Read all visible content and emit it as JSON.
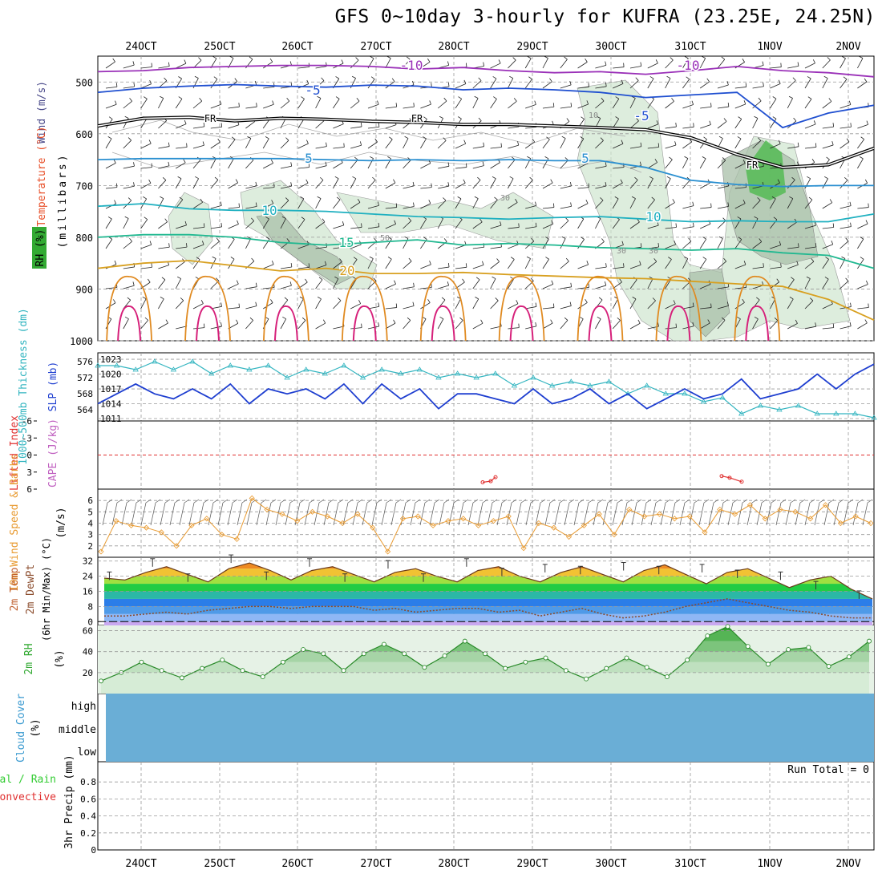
{
  "header": {
    "title": "GFS 0~10day 3-hourly for KUFRA (23.25E, 24.25N)"
  },
  "date_labels": [
    "24OCT",
    "25OCT",
    "26OCT",
    "27OCT",
    "28OCT",
    "29OCT",
    "30OCT",
    "31OCT",
    "1NOV",
    "2NOV"
  ],
  "colors": {
    "temp_label": "#e8502a",
    "wind_label": "#4a4a8a",
    "rh_green": "#33aa33",
    "slp": "#1f3fd0",
    "thickness": "#33b5c0",
    "li": "#e03030",
    "cape": "#c060c0",
    "wind10": "#e89a30",
    "rh2m": "#33aa33",
    "cloud": "#6aaed6",
    "precip_total": "#33cc33",
    "precip_conv": "#e03030"
  },
  "chart_data": [
    {
      "type": "line",
      "panel": "upper-air",
      "ylabels": [
        "Wind (m/s)",
        "Temperature (°C)",
        "RH (%)"
      ],
      "ylabel_side": "(millibars)",
      "y_ticks": [
        500,
        600,
        700,
        800,
        900,
        1000
      ],
      "ylim": [
        1000,
        450
      ],
      "isotherm_labels": [
        "-10",
        "-10",
        "-5",
        "-5",
        "FR",
        "FR",
        "FR",
        "5",
        "5",
        "10",
        "10",
        "15",
        "20"
      ],
      "rh_labels": [
        "30",
        "50",
        "30",
        "10",
        "30"
      ],
      "series": [
        {
          "name": "-10",
          "values": [
            480,
            478,
            472,
            470,
            468,
            468,
            470,
            475,
            472,
            478,
            482,
            480,
            485,
            478,
            470,
            478,
            482,
            490
          ]
        },
        {
          "name": "-5",
          "values": [
            520,
            512,
            508,
            505,
            508,
            510,
            506,
            508,
            515,
            512,
            515,
            520,
            530,
            525,
            520,
            588,
            560,
            545
          ]
        },
        {
          "name": "FR",
          "values": [
            585,
            570,
            568,
            575,
            570,
            572,
            576,
            578,
            582,
            582,
            585,
            588,
            592,
            608,
            640,
            665,
            660,
            628
          ]
        },
        {
          "name": "5",
          "values": [
            650,
            648,
            648,
            648,
            648,
            650,
            652,
            650,
            652,
            650,
            652,
            652,
            665,
            690,
            698,
            702,
            700,
            700
          ]
        },
        {
          "name": "10",
          "values": [
            740,
            735,
            745,
            748,
            748,
            750,
            755,
            760,
            762,
            765,
            762,
            760,
            765,
            770,
            768,
            770,
            770,
            755
          ]
        },
        {
          "name": "15",
          "values": [
            800,
            795,
            795,
            800,
            810,
            815,
            810,
            805,
            815,
            812,
            815,
            820,
            822,
            825,
            822,
            830,
            835,
            860
          ]
        },
        {
          "name": "20",
          "values": [
            860,
            850,
            845,
            855,
            865,
            860,
            870,
            870,
            868,
            872,
            875,
            878,
            880,
            885,
            890,
            895,
            920,
            960
          ]
        }
      ]
    },
    {
      "type": "line",
      "panel": "slp-thickness",
      "ylabels": [
        "1000~500mb Thickness (dm)",
        "SLP (mb)"
      ],
      "left_ticks": [
        "576",
        "572",
        "568",
        "564"
      ],
      "right_ticks": [
        "1023",
        "1020",
        "1017",
        "1014",
        "1011"
      ],
      "series": [
        {
          "name": "SLP (mb)",
          "values": [
            1014,
            1016,
            1018,
            1016,
            1015,
            1017,
            1015,
            1018,
            1014,
            1017,
            1016,
            1017,
            1015,
            1018,
            1014,
            1018,
            1015,
            1017,
            1013,
            1016,
            1016,
            1015,
            1014,
            1017,
            1014,
            1015,
            1017,
            1014,
            1016,
            1013,
            1015,
            1017,
            1015,
            1016,
            1019,
            1015,
            1016,
            1017,
            1020,
            1017,
            1020,
            1022
          ]
        },
        {
          "name": "1000~500mb Thickness (dm)",
          "values": [
            575,
            575,
            574,
            576,
            574,
            576,
            573,
            575,
            574,
            575,
            572,
            574,
            573,
            575,
            572,
            574,
            573,
            574,
            572,
            573,
            572,
            573,
            570,
            572,
            570,
            571,
            570,
            571,
            568,
            570,
            568,
            568,
            566,
            567,
            563,
            565,
            564,
            565,
            563,
            563,
            563,
            562
          ]
        }
      ]
    },
    {
      "type": "line",
      "panel": "lifted-index-cape",
      "ylabels": [
        "Lifted Index",
        "CAPE (J/kg)"
      ],
      "y_ticks": [
        "-6",
        "-3",
        "0",
        "3",
        "6"
      ],
      "ylim": [
        -6,
        6
      ],
      "series": [
        {
          "name": "Lifted Index",
          "values": [
            4.8,
            4.6,
            3.9,
            3.7,
            4.0,
            4.7
          ]
        }
      ]
    },
    {
      "type": "line",
      "panel": "wind10m",
      "ylabels": [
        "10m Wind Speed & Barbs",
        "(m/s)"
      ],
      "y_ticks": [
        "6",
        "5",
        "4",
        "3",
        "2"
      ],
      "ylim": [
        1,
        7
      ],
      "series": [
        {
          "name": "10m Wind Speed",
          "values": [
            1.5,
            4.2,
            3.8,
            3.6,
            3.2,
            2.0,
            3.8,
            4.4,
            3.0,
            2.6,
            6.2,
            5.2,
            4.8,
            4.2,
            5.0,
            4.6,
            4.0,
            4.8,
            3.6,
            1.5,
            4.4,
            4.6,
            3.8,
            4.2,
            4.4,
            3.8,
            4.2,
            4.6,
            1.8,
            4.0,
            3.6,
            2.8,
            3.8,
            4.8,
            3.0,
            5.2,
            4.6,
            4.8,
            4.4,
            4.6,
            3.2,
            5.2,
            4.8,
            5.6,
            4.4,
            5.2,
            5.0,
            4.4,
            5.6,
            4.0,
            4.6,
            4.0
          ]
        }
      ]
    },
    {
      "type": "area",
      "panel": "temp2m",
      "ylabels": [
        "2m Temp",
        "2m DewPt",
        "(6hr Min/Max) (°C)"
      ],
      "y_ticks": [
        "32",
        "24",
        "16",
        "8",
        "0"
      ],
      "ylim": [
        -2,
        34
      ],
      "series": [
        {
          "name": "2m Temp",
          "values": [
            23,
            22,
            26,
            29,
            25,
            21,
            28,
            31,
            27,
            22,
            27,
            29,
            25,
            21,
            26,
            28,
            24,
            21,
            27,
            29,
            24,
            21,
            26,
            29,
            25,
            21,
            27,
            30,
            25,
            20,
            26,
            28,
            23,
            18,
            22,
            24,
            17,
            12
          ]
        },
        {
          "name": "2m DewPt",
          "values": [
            3,
            3,
            4,
            5,
            4,
            6,
            7,
            8,
            8,
            7,
            8,
            8,
            8,
            6,
            7,
            5,
            6,
            7,
            7,
            5,
            6,
            3,
            5,
            7,
            4,
            2,
            3,
            5,
            8,
            10,
            12,
            10,
            8,
            6,
            5,
            3,
            2,
            2
          ]
        }
      ]
    },
    {
      "type": "area",
      "panel": "rh2m",
      "ylabels": [
        "2m RH",
        "(%)"
      ],
      "y_ticks": [
        "60",
        "40",
        "20"
      ],
      "ylim": [
        0,
        65
      ],
      "series": [
        {
          "name": "2m RH",
          "values": [
            12,
            20,
            30,
            22,
            15,
            24,
            32,
            22,
            16,
            30,
            42,
            38,
            22,
            38,
            47,
            38,
            25,
            36,
            50,
            38,
            24,
            30,
            34,
            22,
            14,
            24,
            34,
            25,
            16,
            32,
            55,
            64,
            45,
            28,
            42,
            44,
            26,
            35,
            50
          ]
        }
      ]
    },
    {
      "type": "area",
      "panel": "cloud",
      "ylabels": [
        "Cloud Cover",
        "(%)"
      ],
      "y_ticks": [
        "high",
        "middle",
        "low"
      ]
    },
    {
      "type": "bar",
      "panel": "precip",
      "ylabels": [
        "Total / Rain",
        "Convective",
        "3hr Precip (mm)"
      ],
      "y_ticks": [
        "0.8",
        "0.6",
        "0.4",
        "0.2",
        "0"
      ],
      "ylim": [
        0,
        1
      ],
      "note": "Run Total = 0",
      "values": []
    }
  ]
}
